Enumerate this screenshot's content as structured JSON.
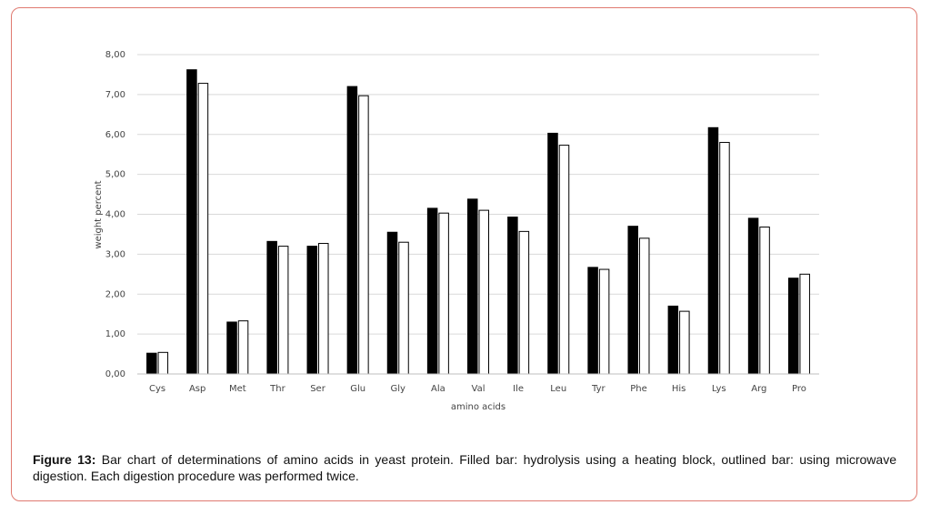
{
  "chart_data": {
    "type": "bar",
    "x_label": "amino acids",
    "y_label": "weight percent",
    "categories": [
      "Cys",
      "Asp",
      "Met",
      "Thr",
      "Ser",
      "Glu",
      "Gly",
      "Ala",
      "Val",
      "Ile",
      "Leu",
      "Tyr",
      "Phe",
      "His",
      "Lys",
      "Arg",
      "Pro"
    ],
    "series": [
      {
        "color": "#000000",
        "values": [
          0.52,
          7.62,
          1.3,
          3.32,
          3.2,
          7.2,
          3.55,
          4.15,
          4.38,
          3.93,
          6.03,
          2.67,
          3.7,
          1.7,
          6.17,
          3.9,
          2.4
        ]
      },
      {
        "color": "#ffffff",
        "values": [
          0.54,
          7.28,
          1.33,
          3.2,
          3.27,
          6.97,
          3.3,
          4.03,
          4.1,
          3.57,
          5.73,
          2.62,
          3.4,
          1.57,
          5.8,
          3.68,
          2.5
        ]
      }
    ],
    "ylim": [
      0,
      8
    ],
    "yticks": [
      {
        "value": 0,
        "label": "0,00"
      },
      {
        "value": 1,
        "label": "1,00"
      },
      {
        "value": 2,
        "label": "2,00"
      },
      {
        "value": 3,
        "label": "3,00"
      },
      {
        "value": 4,
        "label": "4,00"
      },
      {
        "value": 5,
        "label": "5,00"
      },
      {
        "value": 6,
        "label": "6,00"
      },
      {
        "value": 7,
        "label": "7,00"
      },
      {
        "value": 8,
        "label": "8,00"
      }
    ],
    "grid": true
  },
  "caption": {
    "label": "Figure 13:",
    "text": "Bar chart of determinations of amino acids in yeast protein. Filled bar: hydrolysis using a heating block, outlined bar: using microwave digestion. Each digestion procedure was performed twice."
  }
}
